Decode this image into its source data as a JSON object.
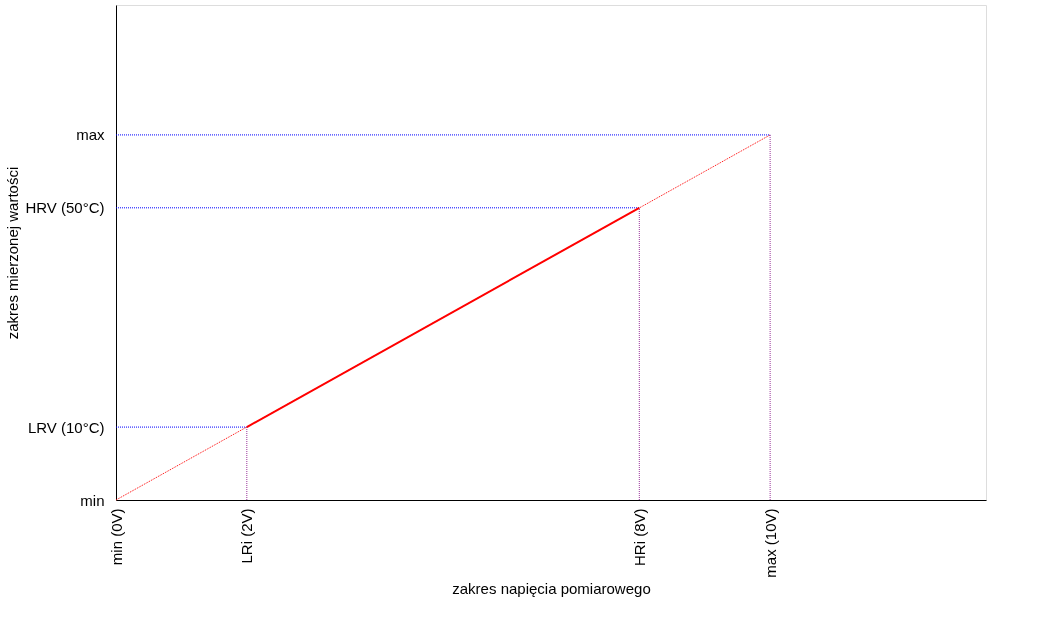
{
  "chart_data": {
    "type": "line",
    "xlabel": "zakres napięcia pomiarowego",
    "ylabel": "zakres mierzonej wartości",
    "xlim": [
      0,
      13.3
    ],
    "ylim": [
      -3.3,
      87
    ],
    "xticks": [
      {
        "value": 0,
        "label": "min (0V)"
      },
      {
        "value": 2,
        "label": "LRi (2V)"
      },
      {
        "value": 8,
        "label": "HRi (8V)"
      },
      {
        "value": 10,
        "label": "max (10V)"
      }
    ],
    "yticks": [
      {
        "value": -3.3,
        "label": "min"
      },
      {
        "value": 10,
        "label": "LRV (10°C)"
      },
      {
        "value": 50,
        "label": "HRV (50°C)"
      },
      {
        "value": 63.3,
        "label": "max"
      }
    ],
    "grid": false,
    "marker": "none",
    "series": [
      {
        "color": "#ff0000",
        "line_style": "dotted",
        "x": [
          0,
          10
        ],
        "values": [
          -3.3,
          63.3
        ]
      },
      {
        "color": "#0000ff",
        "line_style": "dotted",
        "x": [
          0,
          2
        ],
        "values": [
          10,
          10
        ]
      },
      {
        "color": "#0000ff",
        "line_style": "dotted",
        "x": [
          0,
          8
        ],
        "values": [
          50,
          50
        ]
      },
      {
        "color": "#0000ff",
        "line_style": "dotted",
        "x": [
          0,
          10
        ],
        "values": [
          63.3,
          63.3
        ]
      },
      {
        "color": "#993399",
        "line_style": "dotted",
        "x": [
          2,
          2
        ],
        "values": [
          -3.3,
          10
        ]
      },
      {
        "color": "#993399",
        "line_style": "dotted",
        "x": [
          8,
          8
        ],
        "values": [
          -3.3,
          50
        ]
      },
      {
        "color": "#993399",
        "line_style": "dotted",
        "x": [
          10,
          10
        ],
        "values": [
          -3.3,
          63.3
        ]
      },
      {
        "color": "#ff0000",
        "line_style": "solid",
        "x": [
          2,
          8
        ],
        "values": [
          10,
          50
        ]
      }
    ]
  }
}
